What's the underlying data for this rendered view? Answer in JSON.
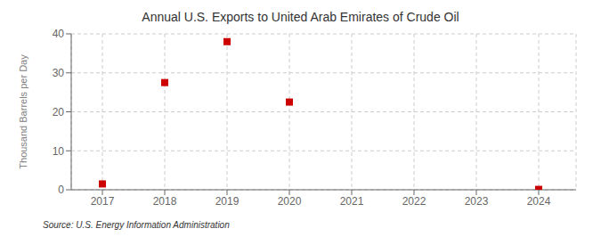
{
  "chart_data": {
    "type": "scatter",
    "title": "Annual U.S. Exports to United Arab Emirates of Crude Oil",
    "y_label": "Thousand Barrels per Day",
    "annotations": [
      "Source: U.S. Energy Information Administration"
    ],
    "x": [
      2017,
      2018,
      2019,
      2020,
      2021,
      2022,
      2023,
      2024
    ],
    "values": [
      1.5,
      27.5,
      38.0,
      22.5,
      null,
      null,
      null,
      0.1
    ],
    "color": "#cc0000",
    "marker": "square",
    "xlim": [
      2016.5,
      2024.6
    ],
    "xticks": [
      2017,
      2018,
      2019,
      2020,
      2021,
      2022,
      2023,
      2024
    ],
    "ylim": [
      0,
      40
    ],
    "yticks": [
      0,
      10,
      20,
      30,
      40
    ],
    "grid": true
  }
}
